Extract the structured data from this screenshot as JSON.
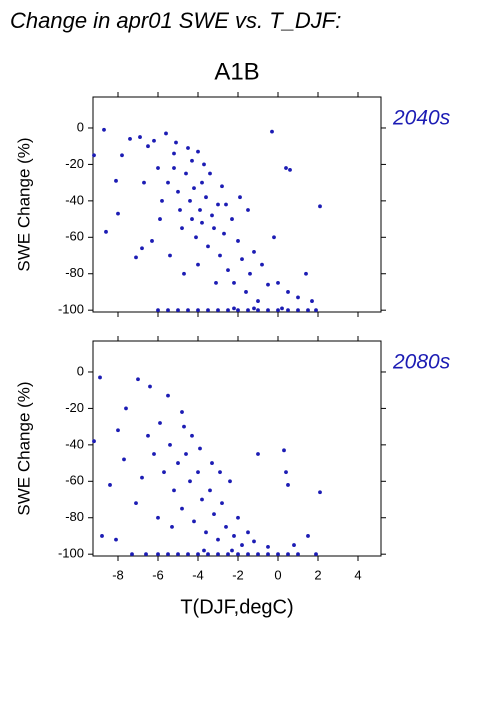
{
  "title": "Change in apr01 SWE vs. T_DJF:",
  "subtitle": "A1B",
  "chart_data": [
    {
      "type": "scatter",
      "label": "2040s",
      "ylabel": "SWE Change (%)",
      "color": "#1c1cb4",
      "xlim": [
        -9.25,
        5.15
      ],
      "ylim": [
        -101,
        17
      ],
      "xticks": [
        -8,
        -6,
        -4,
        -2,
        0,
        2,
        4
      ],
      "yticks": [
        -100,
        -80,
        -60,
        -40,
        -20,
        0
      ],
      "x": [
        -8.7,
        -9.2,
        -7.4,
        -6.9,
        -6.5,
        -6.2,
        -5.6,
        -5.2,
        -4.5,
        -4.0,
        -3.7,
        -7.8,
        -8.1,
        -8.0,
        -8.6,
        -7.1,
        -6.8,
        -6.3,
        -5.9,
        -5.8,
        -5.5,
        -5.2,
        -5.0,
        -4.9,
        -4.8,
        -4.6,
        -4.4,
        -4.3,
        -4.2,
        -4.1,
        -3.9,
        -3.8,
        -3.6,
        -3.5,
        -3.3,
        -3.2,
        -3.0,
        -2.9,
        -2.7,
        -2.5,
        -2.3,
        -2.2,
        -2.0,
        -1.8,
        -1.6,
        -1.4,
        -1.2,
        -1.0,
        -0.8,
        -0.5,
        -0.3,
        0.4,
        0.6,
        -0.2,
        0.0,
        0.5,
        1.0,
        1.4,
        2.1,
        1.7,
        -1.5,
        -2.8,
        -6.0,
        -6.7,
        -5.4,
        -4.7,
        -4.0,
        -3.1,
        -6.0,
        -5.5,
        -5.0,
        -4.5,
        -4.0,
        -3.5,
        -3.0,
        -2.5,
        -2.0,
        -1.5,
        -1.0,
        -0.5,
        0.0,
        0.5,
        1.0,
        1.5,
        1.9,
        -2.2,
        -1.2,
        0.2,
        -3.8,
        -4.3,
        -5.1,
        -3.4,
        -2.6,
        -1.9
      ],
      "y": [
        -1,
        -15,
        -6,
        -5,
        -10,
        -7,
        -3,
        -14,
        -11,
        -13,
        -20,
        -15,
        -29,
        -47,
        -57,
        -71,
        -66,
        -62,
        -50,
        -40,
        -30,
        -22,
        -35,
        -45,
        -55,
        -25,
        -40,
        -50,
        -33,
        -60,
        -45,
        -52,
        -38,
        -65,
        -48,
        -55,
        -42,
        -70,
        -58,
        -78,
        -50,
        -85,
        -62,
        -72,
        -90,
        -80,
        -68,
        -95,
        -75,
        -86,
        -2,
        -22,
        -23,
        -60,
        -85,
        -90,
        -93,
        -80,
        -43,
        -95,
        -45,
        -32,
        -22,
        -30,
        -70,
        -80,
        -75,
        -85,
        -100,
        -100,
        -100,
        -100,
        -100,
        -100,
        -100,
        -100,
        -100,
        -100,
        -100,
        -100,
        -100,
        -100,
        -100,
        -100,
        -100,
        -99,
        -99,
        -99,
        -30,
        -18,
        -8,
        -25,
        -42,
        -38
      ]
    },
    {
      "type": "scatter",
      "label": "2080s",
      "ylabel": "SWE Change (%)",
      "xlabel": "T(DJF,degC)",
      "color": "#1c1cb4",
      "xlim": [
        -9.25,
        5.15
      ],
      "ylim": [
        -101,
        17
      ],
      "xticks": [
        -8,
        -6,
        -4,
        -2,
        0,
        2,
        4
      ],
      "yticks": [
        -100,
        -80,
        -60,
        -40,
        -20,
        0
      ],
      "x": [
        -8.9,
        -9.2,
        -7.6,
        -7.0,
        -6.4,
        -5.5,
        -4.8,
        -8.0,
        -8.4,
        -7.7,
        -7.1,
        -8.8,
        -8.1,
        -6.5,
        -6.2,
        -5.9,
        -5.7,
        -5.4,
        -5.2,
        -5.0,
        -4.8,
        -4.6,
        -4.4,
        -4.2,
        -4.0,
        -3.8,
        -3.6,
        -3.4,
        -3.2,
        -3.0,
        -2.8,
        -2.6,
        -2.4,
        -2.2,
        -2.0,
        -1.8,
        -1.5,
        -1.2,
        -1.0,
        0.3,
        0.4,
        0.5,
        2.1,
        1.5,
        0.8,
        -0.5,
        -6.0,
        -5.5,
        -5.0,
        -4.5,
        -4.0,
        -3.5,
        -3.0,
        -2.5,
        -2.0,
        -1.5,
        -1.0,
        -0.5,
        0.0,
        0.5,
        1.0,
        1.9,
        -7.3,
        -6.6,
        -4.3,
        -3.9,
        -3.3,
        -4.7,
        -5.3,
        -6.0,
        -2.9,
        -3.7,
        -2.3,
        -6.8
      ],
      "y": [
        -3,
        -38,
        -20,
        -4,
        -8,
        -13,
        -22,
        -32,
        -62,
        -48,
        -72,
        -90,
        -92,
        -35,
        -45,
        -28,
        -55,
        -40,
        -65,
        -50,
        -75,
        -45,
        -60,
        -82,
        -55,
        -70,
        -88,
        -65,
        -78,
        -92,
        -72,
        -85,
        -60,
        -90,
        -80,
        -95,
        -88,
        -93,
        -45,
        -43,
        -55,
        -62,
        -66,
        -90,
        -95,
        -96,
        -100,
        -100,
        -100,
        -100,
        -100,
        -100,
        -100,
        -100,
        -100,
        -100,
        -100,
        -100,
        -100,
        -100,
        -100,
        -100,
        -100,
        -100,
        -35,
        -42,
        -50,
        -30,
        -85,
        -80,
        -55,
        -98,
        -98,
        -58
      ]
    }
  ]
}
